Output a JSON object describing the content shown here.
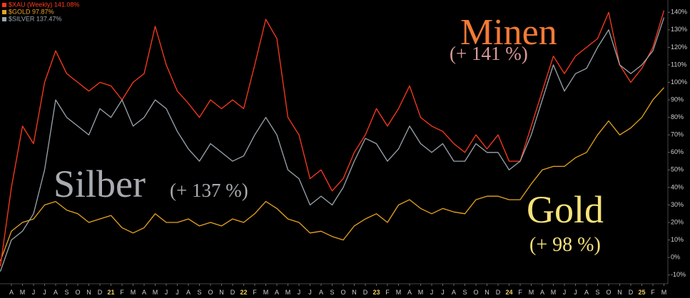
{
  "chart_data": {
    "type": "line",
    "categories": [
      null,
      "A",
      "M",
      "J",
      "J",
      "A",
      "S",
      "O",
      "N",
      "D",
      "21",
      "F",
      "M",
      "A",
      "M",
      "J",
      "J",
      "A",
      "S",
      "O",
      "N",
      "D",
      "22",
      "F",
      "M",
      "A",
      "M",
      "J",
      "J",
      "A",
      "S",
      "O",
      "N",
      "D",
      "23",
      "F",
      "M",
      "A",
      "M",
      "J",
      "J",
      "A",
      "S",
      "O",
      "N",
      "D",
      "24",
      "F",
      "M",
      "A",
      "M",
      "J",
      "J",
      "A",
      "S",
      "O",
      "N",
      "D",
      "25",
      "F",
      "M"
    ],
    "series": [
      {
        "name": "$XAU (Weekly) 141.08%",
        "color": "#ff3a1e",
        "values": [
          -5,
          40,
          75,
          65,
          100,
          118,
          105,
          100,
          95,
          100,
          98,
          90,
          100,
          105,
          132,
          110,
          95,
          88,
          80,
          90,
          85,
          90,
          85,
          110,
          136,
          125,
          80,
          70,
          45,
          50,
          38,
          45,
          60,
          70,
          85,
          75,
          85,
          98,
          80,
          75,
          72,
          65,
          60,
          70,
          62,
          70,
          55,
          55,
          75,
          95,
          115,
          105,
          115,
          120,
          125,
          140,
          110,
          100,
          108,
          120,
          141
        ]
      },
      {
        "name": "$GOLD 97.87%",
        "color": "#e8a420",
        "values": [
          -2,
          15,
          20,
          22,
          30,
          32,
          27,
          25,
          20,
          22,
          24,
          17,
          14,
          17,
          25,
          20,
          20,
          22,
          18,
          20,
          18,
          22,
          20,
          25,
          32,
          28,
          22,
          20,
          14,
          15,
          12,
          10,
          18,
          22,
          25,
          20,
          30,
          33,
          28,
          25,
          28,
          26,
          25,
          33,
          35,
          35,
          33,
          33,
          42,
          50,
          52,
          52,
          57,
          60,
          70,
          78,
          70,
          74,
          80,
          90,
          97
        ]
      },
      {
        "name": "$SILVER 137.47%",
        "color": "#9aa6ae",
        "values": [
          -8,
          10,
          15,
          25,
          50,
          90,
          80,
          75,
          70,
          85,
          80,
          90,
          75,
          80,
          90,
          85,
          72,
          62,
          55,
          65,
          60,
          55,
          58,
          70,
          80,
          70,
          50,
          45,
          30,
          35,
          30,
          40,
          55,
          68,
          65,
          55,
          62,
          75,
          65,
          60,
          65,
          55,
          55,
          65,
          60,
          60,
          50,
          55,
          70,
          90,
          110,
          95,
          105,
          108,
          120,
          130,
          110,
          105,
          110,
          118,
          137
        ]
      }
    ],
    "ylim": [
      -15,
      145
    ],
    "yticks": [
      {
        "value": -10,
        "label": "-10%"
      },
      {
        "value": 0,
        "label": "0%"
      },
      {
        "value": 10,
        "label": "10%"
      },
      {
        "value": 20,
        "label": "20%"
      },
      {
        "value": 30,
        "label": "30%"
      },
      {
        "value": 40,
        "label": "40%"
      },
      {
        "value": 50,
        "label": "50%"
      },
      {
        "value": 60,
        "label": "60%"
      },
      {
        "value": 70,
        "label": "70%"
      },
      {
        "value": 80,
        "label": "80%"
      },
      {
        "value": 90,
        "label": "90%"
      },
      {
        "value": 100,
        "label": "100%"
      },
      {
        "value": 110,
        "label": "110%"
      },
      {
        "value": 120,
        "label": "120%"
      },
      {
        "value": 130,
        "label": "130%"
      },
      {
        "value": 140,
        "label": "140%"
      }
    ],
    "grid": false,
    "legend": "top-left",
    "annotations": [
      {
        "text": "Minen",
        "color": "#f47a36"
      },
      {
        "text": "(+ 141 %)",
        "color": "#d99a98"
      },
      {
        "text": "Silber",
        "color": "#a9adb1"
      },
      {
        "text": "(+ 137 %)",
        "color": "#a9adb1"
      },
      {
        "text": "Gold",
        "color": "#f6e27a"
      },
      {
        "text": "(+ 98 %)",
        "color": "#f6e27a"
      }
    ]
  }
}
